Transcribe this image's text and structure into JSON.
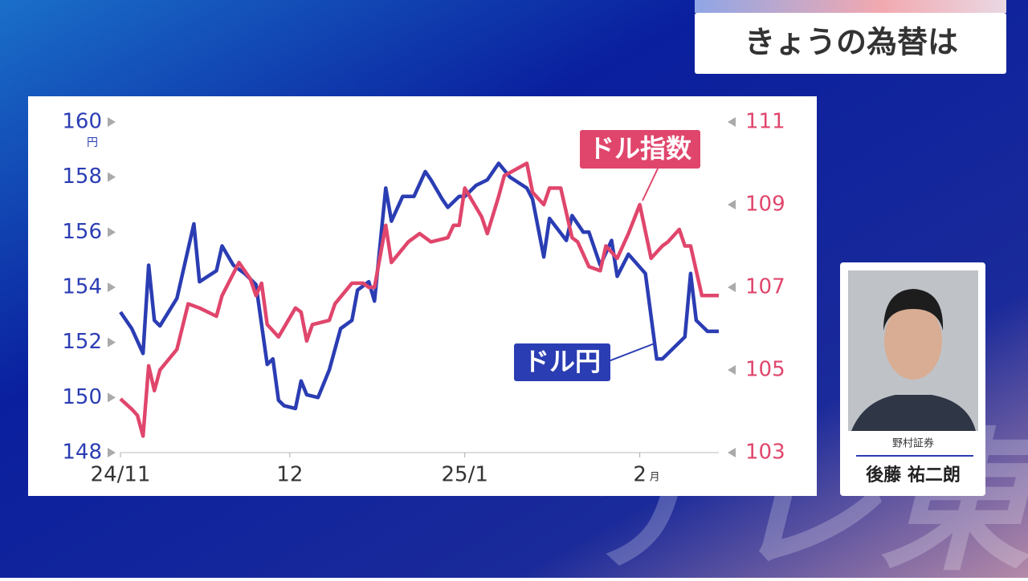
{
  "header": {
    "title": "きょうの為替は"
  },
  "chart_data": {
    "type": "line",
    "xlim": [
      0,
      106
    ],
    "xticks": [
      {
        "value": 0,
        "label": "24/11"
      },
      {
        "value": 30,
        "label": "12"
      },
      {
        "value": 61,
        "label": "25/1"
      },
      {
        "value": 92,
        "label": "2"
      }
    ],
    "xtick_suffix": "月",
    "ylim": [
      148,
      160
    ],
    "yticks": [
      148,
      150,
      152,
      154,
      156,
      158,
      160
    ],
    "y_unit": "円",
    "y2lim": [
      103,
      111
    ],
    "y2ticks": [
      103,
      105,
      107,
      109,
      111
    ],
    "series": [
      {
        "name": "ドル円",
        "color": "#2b3db3",
        "x": [
          0,
          2,
          4,
          5,
          6,
          7,
          10,
          13,
          14,
          17,
          18,
          20,
          22,
          24,
          26,
          27,
          28,
          29,
          31,
          32,
          33,
          35,
          37,
          39,
          41,
          42,
          44,
          45,
          47,
          48,
          50,
          52,
          54,
          55,
          57,
          58,
          60,
          61,
          63,
          65,
          67,
          69,
          72,
          73,
          75,
          76,
          79,
          80,
          82,
          83,
          85,
          87,
          88,
          90,
          93,
          95,
          96,
          100,
          101,
          102,
          104,
          106
        ],
        "values": [
          153.1,
          152.5,
          151.6,
          154.8,
          152.8,
          152.6,
          153.6,
          156.3,
          154.2,
          154.6,
          155.5,
          154.8,
          154.5,
          154.1,
          151.2,
          151.4,
          149.9,
          149.7,
          149.6,
          150.6,
          150.1,
          150.0,
          151.0,
          152.5,
          152.8,
          153.9,
          154.2,
          153.5,
          157.6,
          156.4,
          157.3,
          157.3,
          158.2,
          157.9,
          157.2,
          156.9,
          157.3,
          157.3,
          157.7,
          157.9,
          158.5,
          158.0,
          157.6,
          157.2,
          155.1,
          156.5,
          155.7,
          156.6,
          156.0,
          156.0,
          154.8,
          155.7,
          154.4,
          155.2,
          154.5,
          151.4,
          151.4,
          152.2,
          154.5,
          152.8,
          152.4,
          152.4
        ]
      },
      {
        "name": "ドル指数",
        "color": "#e0466c",
        "axis": "y2",
        "x": [
          0,
          2,
          3,
          4,
          5,
          6,
          7,
          10,
          12,
          14,
          17,
          18,
          21,
          23,
          24,
          25,
          26,
          28,
          31,
          32,
          33,
          34,
          37,
          38,
          41,
          43,
          44,
          45,
          47,
          48,
          51,
          53,
          55,
          58,
          59,
          60,
          61,
          64,
          65,
          67,
          68,
          72,
          73,
          75,
          76,
          78,
          80,
          81,
          83,
          85,
          86,
          88,
          90,
          92,
          94,
          96,
          97,
          99,
          100,
          101,
          103,
          106
        ],
        "values": [
          104.3,
          104.05,
          103.9,
          103.4,
          105.1,
          104.5,
          105.0,
          105.5,
          106.6,
          106.5,
          106.3,
          106.8,
          107.6,
          107.2,
          106.8,
          107.1,
          106.1,
          105.8,
          106.5,
          106.4,
          105.7,
          106.1,
          106.2,
          106.6,
          107.1,
          107.1,
          107.0,
          107.0,
          108.5,
          107.6,
          108.1,
          108.3,
          108.1,
          108.2,
          108.5,
          108.5,
          109.4,
          108.7,
          108.3,
          109.2,
          109.7,
          110.0,
          109.3,
          109.0,
          109.4,
          109.4,
          108.2,
          108.1,
          107.5,
          107.4,
          108.0,
          107.7,
          108.3,
          109.0,
          107.7,
          108.0,
          108.1,
          108.4,
          108.0,
          108.0,
          106.8,
          106.8
        ]
      }
    ]
  },
  "caption": {
    "company": "野村証券",
    "name": "後藤 祐二朗"
  },
  "watermark": "テレ東"
}
